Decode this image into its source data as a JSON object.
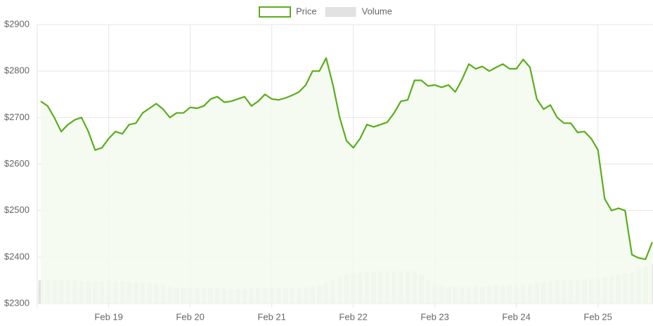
{
  "chart_data": {
    "type": "line",
    "categories": [
      null,
      null,
      null,
      null,
      null,
      null,
      null,
      null,
      null,
      null,
      "Feb 19",
      null,
      null,
      null,
      null,
      null,
      null,
      null,
      null,
      null,
      null,
      null,
      "Feb 20",
      null,
      null,
      null,
      null,
      null,
      null,
      null,
      null,
      null,
      null,
      null,
      "Feb 21",
      null,
      null,
      null,
      null,
      null,
      null,
      null,
      null,
      null,
      null,
      null,
      "Feb 22",
      null,
      null,
      null,
      null,
      null,
      null,
      null,
      null,
      null,
      null,
      null,
      "Feb 23",
      null,
      null,
      null,
      null,
      null,
      null,
      null,
      null,
      null,
      null,
      null,
      "Feb 24",
      null,
      null,
      null,
      null,
      null,
      null,
      null,
      null,
      null,
      null,
      null,
      "Feb 25",
      null,
      null,
      null,
      null,
      null,
      null,
      null,
      null
    ],
    "series": [
      {
        "name": "Price",
        "type": "line",
        "color": "#5aad1c",
        "fill": "#f3faee",
        "values": [
          2735,
          2725,
          2700,
          2670,
          2685,
          2695,
          2700,
          2670,
          2630,
          2635,
          2655,
          2670,
          2665,
          2685,
          2688,
          2710,
          2720,
          2730,
          2718,
          2700,
          2710,
          2710,
          2722,
          2720,
          2725,
          2740,
          2745,
          2733,
          2735,
          2740,
          2745,
          2725,
          2735,
          2750,
          2740,
          2738,
          2742,
          2748,
          2755,
          2770,
          2800,
          2800,
          2828,
          2770,
          2700,
          2650,
          2635,
          2655,
          2685,
          2680,
          2685,
          2690,
          2710,
          2735,
          2738,
          2780,
          2780,
          2768,
          2770,
          2765,
          2770,
          2755,
          2782,
          2815,
          2805,
          2810,
          2800,
          2808,
          2815,
          2805,
          2805,
          2825,
          2808,
          2740,
          2718,
          2727,
          2700,
          2688,
          2688,
          2668,
          2670,
          2655,
          2630,
          2525,
          2500,
          2505,
          2500,
          2405,
          2398,
          2395,
          2432
        ]
      },
      {
        "name": "Volume",
        "type": "bar",
        "color": "#e2e2e2",
        "values": [
          2350,
          2350,
          2350,
          2352,
          2352,
          2350,
          2348,
          2347,
          2347,
          2348,
          2349,
          2348,
          2348,
          2347,
          2346,
          2345,
          2344,
          2342,
          2340,
          2336,
          2334,
          2333,
          2333,
          2333,
          2333,
          2332,
          2332,
          2332,
          2331,
          2331,
          2331,
          2332,
          2332,
          2333,
          2333,
          2333,
          2333,
          2333,
          2334,
          2335,
          2337,
          2340,
          2345,
          2352,
          2358,
          2362,
          2365,
          2367,
          2368,
          2369,
          2370,
          2370,
          2370,
          2370,
          2371,
          2369,
          2362,
          2350,
          2343,
          2338,
          2336,
          2335,
          2335,
          2336,
          2337,
          2336,
          2338,
          2338,
          2339,
          2340,
          2340,
          2340,
          2342,
          2345,
          2347,
          2349,
          2350,
          2350,
          2350,
          2351,
          2352,
          2353,
          2355,
          2357,
          2360,
          2363,
          2365,
          2366,
          2376,
          2380,
          2385
        ]
      }
    ],
    "ylim": [
      2300,
      2900
    ],
    "yticks": [
      {
        "value": 2300,
        "label": "$2300"
      },
      {
        "value": 2400,
        "label": "$2400"
      },
      {
        "value": 2500,
        "label": "$2500"
      },
      {
        "value": 2600,
        "label": "$2600"
      },
      {
        "value": 2700,
        "label": "$2700"
      },
      {
        "value": 2800,
        "label": "$2800"
      },
      {
        "value": 2900,
        "label": "$2900"
      }
    ],
    "grid": true,
    "legend": "top"
  }
}
